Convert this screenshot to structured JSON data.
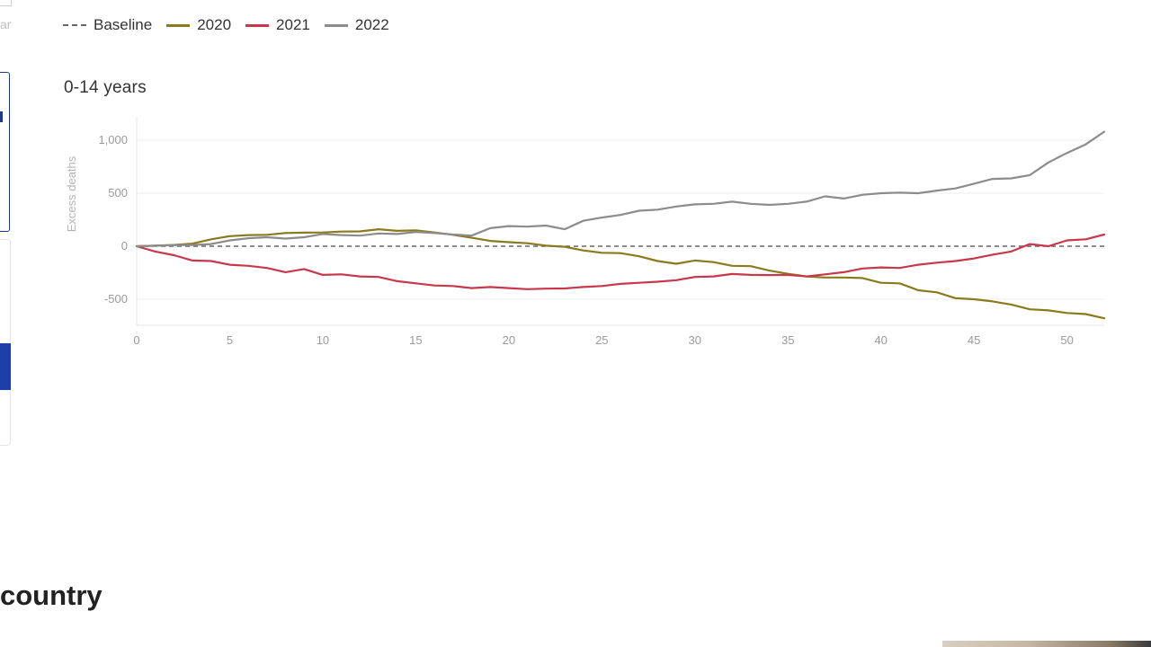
{
  "left_fragment": {
    "label": "ar"
  },
  "legend": [
    {
      "name": "Baseline",
      "style": "dashed",
      "color": "#666666"
    },
    {
      "name": "2020",
      "style": "solid",
      "color": "#8a7a1e"
    },
    {
      "name": "2021",
      "style": "solid",
      "color": "#c8384a"
    },
    {
      "name": "2022",
      "style": "solid",
      "color": "#8c8c8c"
    }
  ],
  "panel": {
    "title": "0-14 years"
  },
  "section": {
    "heading": "country"
  },
  "chart_data": {
    "type": "line",
    "title": "0-14 years",
    "xlabel": "",
    "ylabel": "Excess deaths",
    "xlim": [
      0,
      52
    ],
    "ylim": [
      -750,
      1100
    ],
    "x_ticks": [
      0,
      5,
      10,
      15,
      20,
      25,
      30,
      35,
      40,
      45,
      50
    ],
    "y_ticks": [
      -500,
      0,
      500,
      1000
    ],
    "y_tick_labels": [
      "-500",
      "0",
      "500",
      "1,000"
    ],
    "grid": true,
    "legend_position": "top-left",
    "baseline": 0,
    "series": [
      {
        "name": "2020",
        "color": "#8a7a1e",
        "points": [
          [
            0,
            0
          ],
          [
            1,
            5
          ],
          [
            2,
            12
          ],
          [
            3,
            25
          ],
          [
            4,
            65
          ],
          [
            5,
            95
          ],
          [
            6,
            105
          ],
          [
            7,
            108
          ],
          [
            8,
            125
          ],
          [
            9,
            128
          ],
          [
            10,
            130
          ],
          [
            11,
            138
          ],
          [
            12,
            140
          ],
          [
            13,
            160
          ],
          [
            14,
            145
          ],
          [
            15,
            150
          ],
          [
            16,
            130
          ],
          [
            17,
            108
          ],
          [
            18,
            80
          ],
          [
            19,
            50
          ],
          [
            20,
            38
          ],
          [
            21,
            28
          ],
          [
            22,
            5
          ],
          [
            23,
            -5
          ],
          [
            24,
            -40
          ],
          [
            25,
            -62
          ],
          [
            26,
            -65
          ],
          [
            27,
            -95
          ],
          [
            28,
            -140
          ],
          [
            29,
            -165
          ],
          [
            30,
            -135
          ],
          [
            31,
            -150
          ],
          [
            32,
            -185
          ],
          [
            33,
            -188
          ],
          [
            34,
            -230
          ],
          [
            35,
            -260
          ],
          [
            36,
            -285
          ],
          [
            37,
            -295
          ],
          [
            38,
            -295
          ],
          [
            39,
            -300
          ],
          [
            40,
            -345
          ],
          [
            41,
            -350
          ],
          [
            42,
            -415
          ],
          [
            43,
            -435
          ],
          [
            44,
            -490
          ],
          [
            45,
            -500
          ],
          [
            46,
            -520
          ],
          [
            47,
            -550
          ],
          [
            48,
            -595
          ],
          [
            49,
            -605
          ],
          [
            50,
            -630
          ],
          [
            51,
            -640
          ],
          [
            52,
            -680
          ]
        ]
      },
      {
        "name": "2021",
        "color": "#c8384a",
        "points": [
          [
            0,
            0
          ],
          [
            1,
            -50
          ],
          [
            2,
            -85
          ],
          [
            3,
            -135
          ],
          [
            4,
            -140
          ],
          [
            5,
            -175
          ],
          [
            6,
            -185
          ],
          [
            7,
            -205
          ],
          [
            8,
            -245
          ],
          [
            9,
            -215
          ],
          [
            10,
            -270
          ],
          [
            11,
            -265
          ],
          [
            12,
            -285
          ],
          [
            13,
            -290
          ],
          [
            14,
            -330
          ],
          [
            15,
            -350
          ],
          [
            16,
            -370
          ],
          [
            17,
            -375
          ],
          [
            18,
            -395
          ],
          [
            19,
            -385
          ],
          [
            20,
            -395
          ],
          [
            21,
            -405
          ],
          [
            22,
            -400
          ],
          [
            23,
            -398
          ],
          [
            24,
            -385
          ],
          [
            25,
            -375
          ],
          [
            26,
            -355
          ],
          [
            27,
            -345
          ],
          [
            28,
            -335
          ],
          [
            29,
            -320
          ],
          [
            30,
            -290
          ],
          [
            31,
            -285
          ],
          [
            32,
            -262
          ],
          [
            33,
            -270
          ],
          [
            34,
            -272
          ],
          [
            35,
            -270
          ],
          [
            36,
            -285
          ],
          [
            37,
            -265
          ],
          [
            38,
            -245
          ],
          [
            39,
            -210
          ],
          [
            40,
            -200
          ],
          [
            41,
            -205
          ],
          [
            42,
            -175
          ],
          [
            43,
            -155
          ],
          [
            44,
            -140
          ],
          [
            45,
            -115
          ],
          [
            46,
            -80
          ],
          [
            47,
            -50
          ],
          [
            48,
            20
          ],
          [
            49,
            0
          ],
          [
            50,
            55
          ],
          [
            51,
            65
          ],
          [
            52,
            110
          ]
        ]
      },
      {
        "name": "2022",
        "color": "#8c8c8c",
        "points": [
          [
            0,
            0
          ],
          [
            1,
            5
          ],
          [
            2,
            10
          ],
          [
            3,
            12
          ],
          [
            4,
            20
          ],
          [
            5,
            55
          ],
          [
            6,
            75
          ],
          [
            7,
            85
          ],
          [
            8,
            72
          ],
          [
            9,
            85
          ],
          [
            10,
            115
          ],
          [
            11,
            105
          ],
          [
            12,
            100
          ],
          [
            13,
            120
          ],
          [
            14,
            115
          ],
          [
            15,
            135
          ],
          [
            16,
            125
          ],
          [
            17,
            110
          ],
          [
            18,
            100
          ],
          [
            19,
            170
          ],
          [
            20,
            190
          ],
          [
            21,
            185
          ],
          [
            22,
            195
          ],
          [
            23,
            160
          ],
          [
            24,
            240
          ],
          [
            25,
            270
          ],
          [
            26,
            295
          ],
          [
            27,
            335
          ],
          [
            28,
            345
          ],
          [
            29,
            375
          ],
          [
            30,
            395
          ],
          [
            31,
            400
          ],
          [
            32,
            420
          ],
          [
            33,
            400
          ],
          [
            34,
            390
          ],
          [
            35,
            400
          ],
          [
            36,
            420
          ],
          [
            37,
            470
          ],
          [
            38,
            450
          ],
          [
            39,
            485
          ],
          [
            40,
            500
          ],
          [
            41,
            505
          ],
          [
            42,
            500
          ],
          [
            43,
            525
          ],
          [
            44,
            545
          ],
          [
            45,
            590
          ],
          [
            46,
            635
          ],
          [
            47,
            640
          ],
          [
            48,
            670
          ],
          [
            49,
            790
          ],
          [
            50,
            880
          ],
          [
            51,
            960
          ],
          [
            52,
            1080
          ]
        ]
      }
    ]
  }
}
